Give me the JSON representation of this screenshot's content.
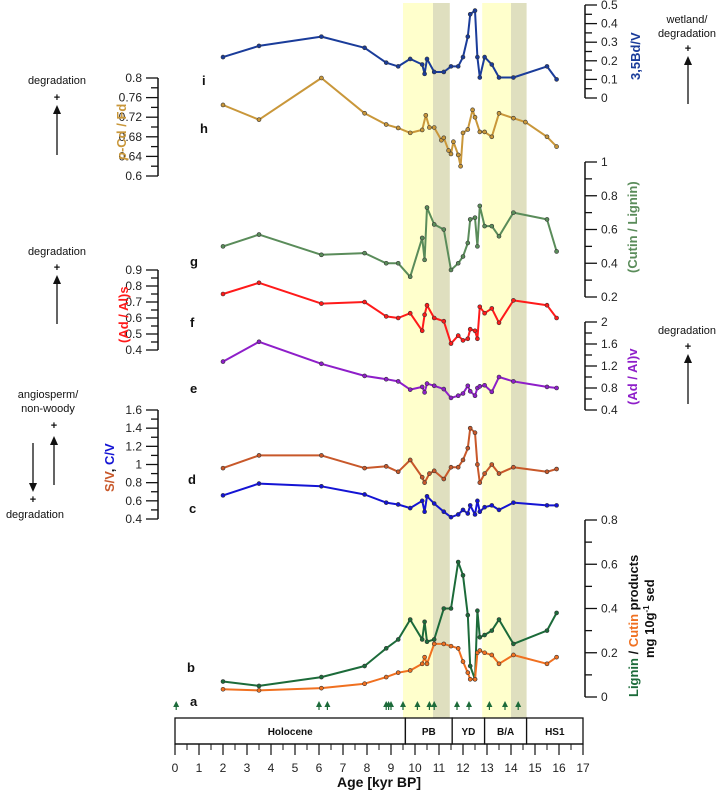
{
  "chart_data": {
    "type": "line",
    "xlabel": "Age [kyr BP]",
    "xlim": [
      0,
      17
    ],
    "x_ticks": [
      "0",
      "1",
      "2",
      "3",
      "4",
      "5",
      "6",
      "7",
      "8",
      "9",
      "10",
      "11",
      "12",
      "13",
      "14",
      "15",
      "16",
      "17"
    ],
    "shading": [
      {
        "name": "PB-light",
        "from": 9.5,
        "to": 10.75,
        "color": "#ffffcc"
      },
      {
        "name": "PB-dark",
        "from": 10.75,
        "to": 11.45,
        "color": "#dfdfbf"
      },
      {
        "name": "BA-light",
        "from": 12.8,
        "to": 14.0,
        "color": "#ffffcc"
      },
      {
        "name": "BA-dark",
        "from": 14.0,
        "to": 14.65,
        "color": "#dfdfbf"
      }
    ],
    "periods": [
      {
        "label": "Holocene",
        "from": 0,
        "to": 9.6
      },
      {
        "label": "PB",
        "from": 9.6,
        "to": 11.55
      },
      {
        "label": "YD",
        "from": 11.55,
        "to": 12.9
      },
      {
        "label": "B/A",
        "from": 12.9,
        "to": 14.65
      },
      {
        "label": "HS1",
        "from": 14.65,
        "to": 17
      }
    ],
    "dating_points": [
      0.05,
      6.0,
      6.35,
      8.8,
      8.9,
      9.0,
      9.5,
      10.1,
      10.6,
      10.8,
      11.75,
      12.25,
      13.1,
      13.75,
      14.3
    ],
    "panels": [
      {
        "id": "i",
        "name": "3,5Bd/V",
        "color": "#1a3c9a",
        "axis_side": "right",
        "ylim": [
          0,
          0.5
        ],
        "ticks": [
          "0",
          "0.1",
          "0.2",
          "0.3",
          "0.4",
          "0.5"
        ],
        "x": [
          2.0,
          3.5,
          6.1,
          7.9,
          8.8,
          9.3,
          9.8,
          10.3,
          10.4,
          10.5,
          10.8,
          11.2,
          11.5,
          11.8,
          12.0,
          12.2,
          12.3,
          12.5,
          12.6,
          12.7,
          12.9,
          13.2,
          13.5,
          14.1,
          15.5,
          15.9
        ],
        "values": [
          0.22,
          0.28,
          0.33,
          0.27,
          0.19,
          0.17,
          0.21,
          0.18,
          0.13,
          0.21,
          0.14,
          0.14,
          0.17,
          0.17,
          0.22,
          0.33,
          0.45,
          0.47,
          0.22,
          0.11,
          0.22,
          0.18,
          0.11,
          0.11,
          0.17,
          0.1
        ],
        "note": "wetland/\ndegradation"
      },
      {
        "id": "h",
        "name": "p-Cd / Fd",
        "color": "#c9973a",
        "axis_side": "left",
        "ylim": [
          0.6,
          0.8
        ],
        "ticks": [
          "0.6",
          "0.64",
          "0.68",
          "0.72",
          "0.76",
          "0.8"
        ],
        "x": [
          2.0,
          3.5,
          6.1,
          7.9,
          8.8,
          9.3,
          9.8,
          10.3,
          10.45,
          10.6,
          10.8,
          11.1,
          11.2,
          11.4,
          11.5,
          11.6,
          11.8,
          11.9,
          12.0,
          12.2,
          12.4,
          12.5,
          12.7,
          12.9,
          13.2,
          13.5,
          14.1,
          14.6,
          15.5,
          15.9
        ],
        "values": [
          0.745,
          0.715,
          0.8,
          0.728,
          0.705,
          0.698,
          0.688,
          0.694,
          0.724,
          0.699,
          0.699,
          0.673,
          0.678,
          0.652,
          0.645,
          0.67,
          0.643,
          0.62,
          0.688,
          0.695,
          0.735,
          0.72,
          0.69,
          0.69,
          0.68,
          0.728,
          0.718,
          0.71,
          0.68,
          0.66
        ],
        "note": "degradation"
      },
      {
        "id": "g",
        "name": "(Cutin / Lignin)",
        "color": "#5a8c5a",
        "axis_side": "right",
        "ylim": [
          0.2,
          1.0
        ],
        "ticks": [
          "0.2",
          "0.4",
          "0.6",
          "0.8",
          "1"
        ],
        "x": [
          2.0,
          3.5,
          6.1,
          7.9,
          8.8,
          9.3,
          9.8,
          10.3,
          10.4,
          10.5,
          10.8,
          11.2,
          11.5,
          11.8,
          12.0,
          12.2,
          12.3,
          12.5,
          12.6,
          12.7,
          12.9,
          13.2,
          13.5,
          14.1,
          15.5,
          15.9
        ],
        "values": [
          0.5,
          0.57,
          0.45,
          0.46,
          0.4,
          0.4,
          0.32,
          0.55,
          0.42,
          0.73,
          0.63,
          0.6,
          0.36,
          0.4,
          0.44,
          0.52,
          0.66,
          0.67,
          0.5,
          0.74,
          0.62,
          0.62,
          0.56,
          0.7,
          0.66,
          0.47
        ],
        "note": ""
      },
      {
        "id": "f",
        "name": "(Ad / Al)s",
        "color": "#ff1a1a",
        "axis_side": "left",
        "ylim": [
          0.4,
          0.9
        ],
        "ticks": [
          "0.4",
          "0.5",
          "0.6",
          "0.7",
          "0.8",
          "0.9"
        ],
        "x": [
          2.0,
          3.5,
          6.1,
          7.9,
          8.8,
          9.3,
          9.8,
          10.3,
          10.4,
          10.5,
          10.8,
          11.2,
          11.5,
          11.8,
          12.0,
          12.2,
          12.3,
          12.5,
          12.6,
          12.7,
          12.9,
          13.2,
          13.5,
          14.1,
          15.5,
          15.9
        ],
        "values": [
          0.75,
          0.82,
          0.69,
          0.7,
          0.61,
          0.6,
          0.63,
          0.52,
          0.62,
          0.68,
          0.6,
          0.58,
          0.44,
          0.49,
          0.46,
          0.47,
          0.53,
          0.52,
          0.47,
          0.67,
          0.63,
          0.66,
          0.57,
          0.71,
          0.68,
          0.6
        ],
        "note": "degradation"
      },
      {
        "id": "e",
        "name": "(Ad / Al)v",
        "color": "#8e1ec9",
        "axis_side": "right",
        "ylim": [
          0.4,
          2.0
        ],
        "ticks": [
          "0.4",
          "0.8",
          "1.2",
          "1.6",
          "2"
        ],
        "x": [
          2.0,
          3.5,
          6.1,
          7.9,
          8.8,
          9.3,
          9.8,
          10.3,
          10.4,
          10.5,
          10.8,
          11.2,
          11.5,
          11.8,
          12.0,
          12.2,
          12.3,
          12.5,
          12.6,
          12.7,
          12.9,
          13.2,
          13.5,
          14.1,
          15.5,
          15.9
        ],
        "values": [
          1.28,
          1.64,
          1.24,
          1.02,
          0.96,
          0.92,
          0.77,
          0.82,
          0.72,
          0.88,
          0.84,
          0.78,
          0.62,
          0.66,
          0.7,
          0.84,
          0.74,
          0.66,
          0.8,
          0.83,
          0.85,
          0.73,
          1.0,
          0.92,
          0.82,
          0.8
        ],
        "note": "degradation"
      },
      {
        "id": "d",
        "name": "S/V",
        "color": "#c8582a",
        "axis_side": "left",
        "ylim": [
          0.4,
          1.6
        ],
        "ticks": [
          "0.4",
          "0.6",
          "0.8",
          "1",
          "1.2",
          "1.4",
          "1.6"
        ],
        "x": [
          2.0,
          3.5,
          6.1,
          7.9,
          8.8,
          9.3,
          9.8,
          10.3,
          10.4,
          10.6,
          10.8,
          11.2,
          11.5,
          11.8,
          12.0,
          12.2,
          12.3,
          12.5,
          12.6,
          12.7,
          12.9,
          13.2,
          13.5,
          14.1,
          15.5,
          15.9
        ],
        "values": [
          0.96,
          1.1,
          1.1,
          0.96,
          0.98,
          0.92,
          1.05,
          0.86,
          0.8,
          0.9,
          0.93,
          0.84,
          0.97,
          0.97,
          1.05,
          1.18,
          1.4,
          1.35,
          1.0,
          0.8,
          0.9,
          1.0,
          0.9,
          0.97,
          0.92,
          0.95
        ],
        "note": ""
      },
      {
        "id": "c",
        "name": "C/V",
        "color": "#1414d4",
        "axis_side": "left",
        "ylim": [
          0.4,
          1.6
        ],
        "ticks": [],
        "x": [
          2.0,
          3.5,
          6.1,
          7.9,
          8.8,
          9.3,
          9.8,
          10.3,
          10.4,
          10.5,
          10.8,
          11.2,
          11.5,
          11.8,
          12.0,
          12.2,
          12.3,
          12.5,
          12.6,
          12.7,
          12.9,
          13.2,
          13.5,
          14.1,
          15.5,
          15.9
        ],
        "values": [
          0.66,
          0.79,
          0.76,
          0.67,
          0.58,
          0.56,
          0.52,
          0.6,
          0.48,
          0.65,
          0.57,
          0.48,
          0.42,
          0.45,
          0.5,
          0.46,
          0.55,
          0.45,
          0.6,
          0.48,
          0.53,
          0.55,
          0.5,
          0.58,
          0.55,
          0.55
        ],
        "note": "angiosperm/\nnon-woody"
      },
      {
        "id": "b_lignin",
        "name": "Lignin",
        "color": "#1c6b3a",
        "axis_side": "right",
        "ylim": [
          0,
          0.8
        ],
        "ticks": [
          "0",
          "0.2",
          "0.4",
          "0.6",
          "0.8"
        ],
        "x": [
          2.0,
          3.5,
          6.1,
          7.9,
          8.8,
          9.3,
          9.8,
          10.3,
          10.4,
          10.5,
          10.8,
          11.2,
          11.5,
          11.8,
          12.0,
          12.2,
          12.3,
          12.5,
          12.6,
          12.7,
          12.9,
          13.2,
          13.5,
          14.1,
          15.5,
          15.9
        ],
        "values": [
          0.07,
          0.05,
          0.09,
          0.14,
          0.22,
          0.26,
          0.35,
          0.26,
          0.34,
          0.25,
          0.26,
          0.4,
          0.4,
          0.61,
          0.55,
          0.37,
          0.14,
          0.08,
          0.39,
          0.27,
          0.28,
          0.3,
          0.35,
          0.24,
          0.3,
          0.38
        ],
        "note": ""
      },
      {
        "id": "b_cutin",
        "name": "Cutin",
        "color": "#f07020",
        "axis_side": "right",
        "ylim": [
          0,
          0.8
        ],
        "ticks": [],
        "x": [
          2.0,
          3.5,
          6.1,
          7.9,
          8.8,
          9.3,
          9.8,
          10.3,
          10.4,
          10.5,
          10.8,
          11.2,
          11.5,
          11.8,
          12.0,
          12.2,
          12.3,
          12.5,
          12.6,
          12.7,
          12.9,
          13.2,
          13.5,
          14.1,
          15.5,
          15.9
        ],
        "values": [
          0.035,
          0.03,
          0.04,
          0.06,
          0.09,
          0.11,
          0.12,
          0.15,
          0.18,
          0.15,
          0.24,
          0.24,
          0.23,
          0.22,
          0.16,
          0.11,
          0.08,
          0.08,
          0.2,
          0.21,
          0.2,
          0.19,
          0.15,
          0.19,
          0.15,
          0.18
        ],
        "note": ""
      }
    ],
    "labels": {
      "i": "i",
      "h": "h",
      "g": "g",
      "f": "f",
      "e": "e",
      "d": "d",
      "c": "c",
      "b": "b",
      "a": "a",
      "title_i": "3,5Bd/V",
      "title_h_italic": "p",
      "title_h_rest": "-Cd / Fd",
      "title_g": "(Cutin / Lignin)",
      "title_f": "(Ad / Al)s",
      "title_e": "(Ad / Al)v",
      "title_dc_s": "S/V",
      "title_dc_sep": ", ",
      "title_dc_c": "C/V",
      "title_b_lignin": "Lignin",
      "title_b_sep": " / ",
      "title_b_cutin": "Cutin",
      "title_b_products": " products",
      "title_b_unit": "mg 10g",
      "title_b_unit_sup": "-1",
      "title_b_unit_rest": " sed",
      "note_wetland": "wetland/",
      "note_wetland2": "degradation",
      "note_degradation": "degradation",
      "note_plus": "+",
      "note_angio1": "angiosperm/",
      "note_angio2": "non-woody"
    }
  }
}
